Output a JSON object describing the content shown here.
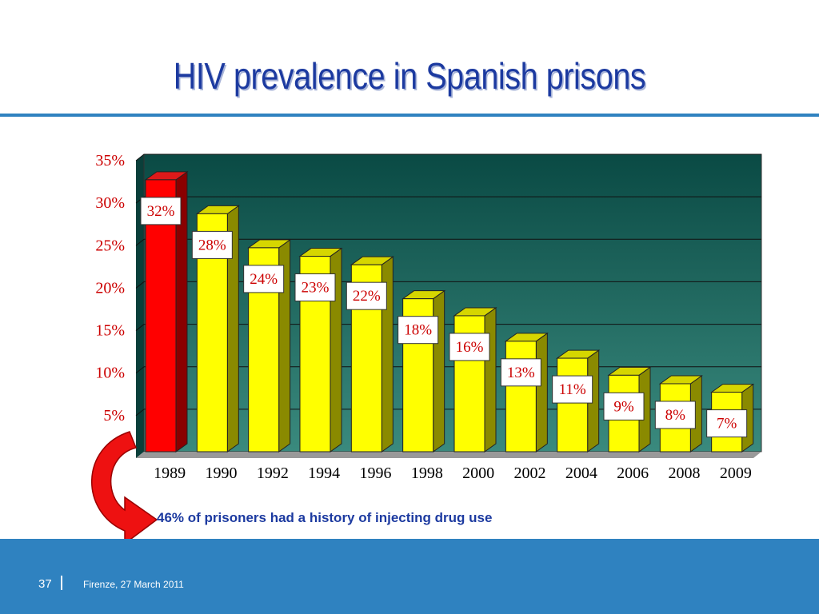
{
  "slide": {
    "title": "HIV prevalence in Spanish prisons",
    "note": "46% of prisoners had a history of injecting drug use",
    "footer": {
      "page_number": "37",
      "text": "Firenze, 27 March 2011"
    }
  },
  "colors": {
    "title": "#1c3aa0",
    "accent": "#2f82c0",
    "plot_background": "#0c5a50",
    "bar_highlight": "#ff0000",
    "bar_default": "#ffff00",
    "data_label": "#cc0000",
    "axis_tick_label": "#cc0000",
    "arrow": "#ee1111"
  },
  "chart_data": {
    "type": "bar",
    "categories": [
      "1989",
      "1990",
      "1992",
      "1994",
      "1996",
      "1998",
      "2000",
      "2002",
      "2004",
      "2006",
      "2008",
      "2009"
    ],
    "values": [
      32,
      28,
      24,
      23,
      22,
      18,
      16,
      13,
      11,
      9,
      8,
      7
    ],
    "data_labels": [
      "32%",
      "28%",
      "24%",
      "23%",
      "22%",
      "18%",
      "16%",
      "13%",
      "11%",
      "9%",
      "8%",
      "7%"
    ],
    "highlight_index": 0,
    "ylim": [
      0,
      35
    ],
    "yticks": [
      5,
      10,
      15,
      20,
      25,
      30,
      35
    ],
    "ytick_labels": [
      "5%",
      "10%",
      "15%",
      "20%",
      "25%",
      "30%",
      "35%"
    ],
    "grid": true,
    "legend": "none"
  }
}
